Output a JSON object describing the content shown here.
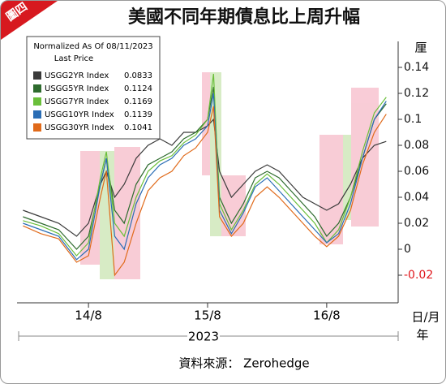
{
  "chart_data": {
    "type": "line",
    "badge": "圖四",
    "title": "美國不同年期債息比上周升幅",
    "legend_header": [
      "Normalized As Of 08/11/2023",
      "Last Price"
    ],
    "y_unit": "厘",
    "x_unit": "日/月",
    "year": "2023",
    "year_unit": "年",
    "source": "資料來源： Zerohedge",
    "xlim": [
      13.4,
      16.6
    ],
    "xticks": [
      {
        "value": 14,
        "label": "14/8"
      },
      {
        "value": 15,
        "label": "15/8"
      },
      {
        "value": 16,
        "label": "16/8"
      }
    ],
    "ylim": [
      -0.04,
      0.16
    ],
    "yticks": [
      -0.02,
      0,
      0.02,
      0.04,
      0.06,
      0.08,
      0.1,
      0.12,
      0.14
    ],
    "negative_tick_color": "#e0161b",
    "x": [
      13.45,
      13.6,
      13.75,
      13.9,
      14.0,
      14.1,
      14.15,
      14.22,
      14.3,
      14.4,
      14.5,
      14.6,
      14.7,
      14.8,
      14.9,
      15.0,
      15.05,
      15.1,
      15.2,
      15.3,
      15.4,
      15.5,
      15.6,
      15.7,
      15.8,
      15.9,
      16.0,
      16.1,
      16.2,
      16.3,
      16.4,
      16.5
    ],
    "series": [
      {
        "name": "USGG2YR Index",
        "last_price": 0.0833,
        "color": "#3a3a3a",
        "values": [
          0.03,
          0.025,
          0.02,
          0.01,
          0.02,
          0.05,
          0.06,
          0.04,
          0.05,
          0.07,
          0.08,
          0.085,
          0.08,
          0.09,
          0.09,
          0.095,
          0.1,
          0.06,
          0.04,
          0.05,
          0.06,
          0.065,
          0.06,
          0.05,
          0.04,
          0.035,
          0.03,
          0.035,
          0.05,
          0.07,
          0.08,
          0.083
        ]
      },
      {
        "name": "USGG5YR Index",
        "last_price": 0.1124,
        "color": "#2e6b2e",
        "values": [
          0.025,
          0.02,
          0.015,
          0.0,
          0.01,
          0.05,
          0.07,
          0.03,
          0.02,
          0.05,
          0.065,
          0.07,
          0.075,
          0.085,
          0.09,
          0.1,
          0.125,
          0.04,
          0.02,
          0.035,
          0.055,
          0.06,
          0.055,
          0.045,
          0.035,
          0.025,
          0.01,
          0.02,
          0.04,
          0.07,
          0.1,
          0.112
        ]
      },
      {
        "name": "USGG7YR Index",
        "last_price": 0.1169,
        "color": "#6abf3a",
        "values": [
          0.022,
          0.018,
          0.012,
          -0.005,
          0.005,
          0.055,
          0.075,
          0.02,
          0.01,
          0.04,
          0.06,
          0.068,
          0.072,
          0.082,
          0.088,
          0.1,
          0.135,
          0.035,
          0.015,
          0.03,
          0.05,
          0.058,
          0.05,
          0.04,
          0.03,
          0.02,
          0.005,
          0.015,
          0.04,
          0.075,
          0.105,
          0.117
        ]
      },
      {
        "name": "USGG10YR Index",
        "last_price": 0.1139,
        "color": "#2a6db5",
        "values": [
          0.02,
          0.015,
          0.01,
          -0.008,
          0.0,
          0.05,
          0.07,
          0.01,
          0.0,
          0.035,
          0.055,
          0.065,
          0.07,
          0.08,
          0.085,
          0.095,
          0.12,
          0.03,
          0.012,
          0.028,
          0.048,
          0.055,
          0.045,
          0.035,
          0.025,
          0.015,
          0.005,
          0.012,
          0.035,
          0.07,
          0.1,
          0.114
        ]
      },
      {
        "name": "USGG30YR Index",
        "last_price": 0.1041,
        "color": "#e06a1a",
        "values": [
          0.018,
          0.012,
          0.008,
          -0.01,
          -0.005,
          0.04,
          0.06,
          -0.02,
          -0.01,
          0.02,
          0.045,
          0.055,
          0.06,
          0.072,
          0.078,
          0.09,
          0.11,
          0.025,
          0.01,
          0.02,
          0.04,
          0.048,
          0.04,
          0.03,
          0.02,
          0.01,
          0.002,
          0.01,
          0.03,
          0.065,
          0.09,
          0.104
        ]
      }
    ]
  }
}
